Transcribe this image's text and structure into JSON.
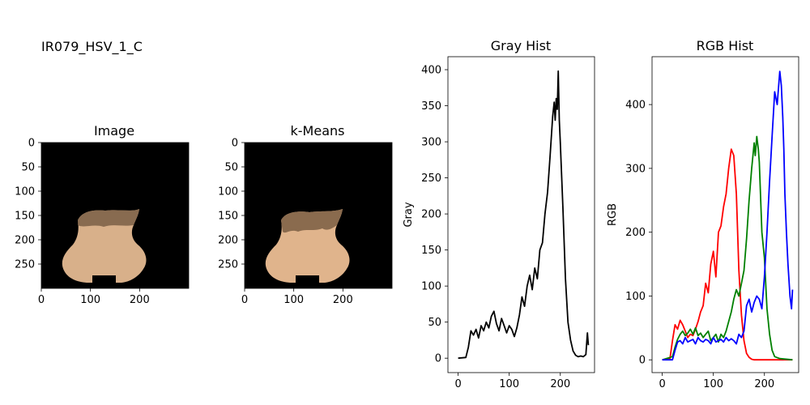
{
  "suptitle": "IR079_HSV_1_C",
  "panels": {
    "image": {
      "title": "Image",
      "x_ticks": [
        "0",
        "100",
        "200"
      ],
      "y_ticks": [
        "0",
        "50",
        "100",
        "150",
        "200",
        "250"
      ],
      "x_tick_values": [
        0,
        100,
        200
      ],
      "y_tick_values": [
        0,
        50,
        100,
        150,
        200,
        250
      ],
      "extent": [
        0,
        300,
        0,
        300
      ],
      "background": "#000000",
      "vase_color": "#d8b08a",
      "vase_dark": "#7a5f45"
    },
    "kmeans": {
      "title": "k-Means",
      "x_ticks": [
        "0",
        "100",
        "200"
      ],
      "y_ticks": [
        "0",
        "50",
        "100",
        "150",
        "200",
        "250"
      ],
      "x_tick_values": [
        0,
        100,
        200
      ],
      "y_tick_values": [
        0,
        50,
        100,
        150,
        200,
        250
      ],
      "extent": [
        0,
        300,
        0,
        300
      ],
      "background": "#000000",
      "cluster_light": "#e0b48c",
      "cluster_dark": "#8a6b4e"
    }
  },
  "chart_data": [
    {
      "type": "line",
      "title": "Gray Hist",
      "xlabel": "",
      "ylabel": "Gray",
      "xlim": [
        -20,
        267
      ],
      "ylim": [
        -20,
        418
      ],
      "x_ticks": [
        0,
        100,
        200
      ],
      "y_ticks": [
        0,
        50,
        100,
        150,
        200,
        250,
        300,
        350,
        400
      ],
      "series": [
        {
          "color": "#000000",
          "x": [
            0,
            15,
            20,
            25,
            30,
            35,
            40,
            45,
            50,
            55,
            60,
            65,
            70,
            75,
            80,
            85,
            90,
            95,
            100,
            105,
            110,
            115,
            120,
            125,
            130,
            135,
            140,
            145,
            150,
            155,
            160,
            165,
            170,
            175,
            180,
            185,
            188,
            190,
            192,
            194,
            196,
            198,
            200,
            205,
            210,
            215,
            220,
            225,
            230,
            235,
            240,
            245,
            250,
            253,
            255
          ],
          "y": [
            0,
            1,
            15,
            38,
            32,
            40,
            28,
            45,
            38,
            50,
            42,
            58,
            65,
            48,
            38,
            55,
            45,
            35,
            45,
            40,
            30,
            42,
            60,
            85,
            72,
            100,
            115,
            95,
            125,
            110,
            150,
            160,
            200,
            230,
            280,
            335,
            355,
            330,
            360,
            345,
            398,
            330,
            300,
            210,
            110,
            50,
            25,
            10,
            4,
            2,
            3,
            2,
            5,
            35,
            18
          ]
        }
      ]
    },
    {
      "type": "line",
      "title": "RGB Hist",
      "xlabel": "",
      "ylabel": "RGB",
      "xlim": [
        -20,
        267
      ],
      "ylim": [
        -20,
        475
      ],
      "x_ticks": [
        0,
        100,
        200
      ],
      "y_ticks": [
        0,
        100,
        200,
        300,
        400
      ],
      "series": [
        {
          "color": "#ff0000",
          "x": [
            0,
            15,
            20,
            25,
            30,
            35,
            40,
            45,
            50,
            55,
            60,
            65,
            70,
            75,
            80,
            85,
            90,
            95,
            100,
            105,
            110,
            115,
            120,
            125,
            130,
            135,
            140,
            145,
            150,
            155,
            160,
            165,
            170,
            175,
            180,
            185,
            190,
            200,
            255
          ],
          "y": [
            0,
            2,
            30,
            55,
            48,
            62,
            55,
            45,
            35,
            40,
            38,
            48,
            60,
            75,
            85,
            120,
            105,
            150,
            170,
            130,
            200,
            210,
            240,
            260,
            300,
            330,
            320,
            260,
            140,
            70,
            30,
            10,
            4,
            1,
            0,
            0,
            0,
            0,
            0
          ]
        },
        {
          "color": "#008000",
          "x": [
            0,
            20,
            25,
            30,
            35,
            40,
            45,
            50,
            55,
            60,
            65,
            70,
            75,
            80,
            85,
            90,
            95,
            100,
            105,
            110,
            115,
            120,
            125,
            130,
            135,
            140,
            145,
            150,
            155,
            160,
            165,
            170,
            175,
            180,
            182,
            185,
            188,
            190,
            195,
            200,
            205,
            210,
            215,
            220,
            230,
            255
          ],
          "y": [
            0,
            5,
            20,
            32,
            40,
            45,
            38,
            42,
            48,
            40,
            50,
            38,
            42,
            35,
            40,
            45,
            30,
            35,
            40,
            28,
            40,
            35,
            45,
            60,
            75,
            95,
            110,
            100,
            120,
            140,
            190,
            250,
            300,
            340,
            320,
            350,
            330,
            310,
            200,
            160,
            80,
            40,
            15,
            5,
            2,
            0
          ]
        },
        {
          "color": "#0000ff",
          "x": [
            0,
            20,
            25,
            30,
            35,
            40,
            45,
            50,
            55,
            60,
            65,
            70,
            75,
            80,
            85,
            90,
            95,
            100,
            105,
            110,
            115,
            120,
            125,
            130,
            135,
            140,
            145,
            150,
            155,
            160,
            165,
            170,
            175,
            180,
            185,
            190,
            195,
            200,
            205,
            210,
            215,
            220,
            225,
            230,
            233,
            236,
            238,
            240,
            243,
            246,
            250,
            253,
            255
          ],
          "y": [
            0,
            0,
            15,
            28,
            30,
            25,
            35,
            28,
            30,
            32,
            25,
            35,
            30,
            28,
            32,
            30,
            25,
            35,
            28,
            30,
            32,
            28,
            35,
            30,
            33,
            30,
            25,
            40,
            35,
            45,
            85,
            95,
            75,
            90,
            100,
            95,
            80,
            130,
            200,
            280,
            350,
            420,
            400,
            452,
            430,
            380,
            330,
            260,
            200,
            150,
            100,
            80,
            110
          ]
        }
      ]
    }
  ]
}
